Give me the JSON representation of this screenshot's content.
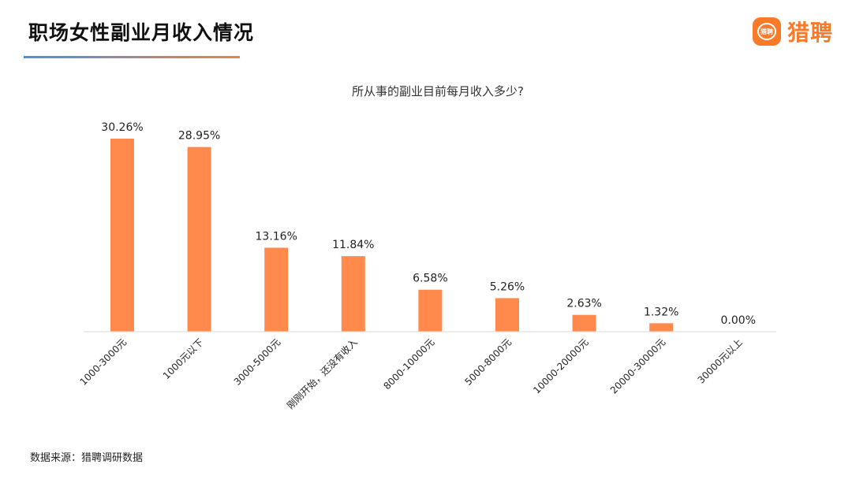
{
  "header": {
    "title": "职场女性副业月收入情况",
    "logo_badge": "猎聘",
    "logo_text": "猎聘"
  },
  "footer": {
    "source": "数据来源：猎聘调研数据"
  },
  "colors": {
    "bar": "#ff8a4c",
    "accent": "#fb7a2a",
    "axis": "#d9d9d9"
  },
  "chart_data": {
    "type": "bar",
    "title": "所从事的副业目前每月收入多少?",
    "categories": [
      "1000-3000元",
      "1000元以下",
      "3000-5000元",
      "刚刚开始，还没有收入",
      "8000-10000元",
      "5000-8000元",
      "10000-20000元",
      "20000-30000元",
      "30000元以上"
    ],
    "values": [
      30.26,
      28.95,
      13.16,
      11.84,
      6.58,
      5.26,
      2.63,
      1.32,
      0.0
    ],
    "value_labels": [
      "30.26%",
      "28.95%",
      "13.16%",
      "11.84%",
      "6.58%",
      "5.26%",
      "2.63%",
      "1.32%",
      "0.00%"
    ],
    "ylim": [
      0,
      30.26
    ],
    "grid": false,
    "legend": "none"
  }
}
